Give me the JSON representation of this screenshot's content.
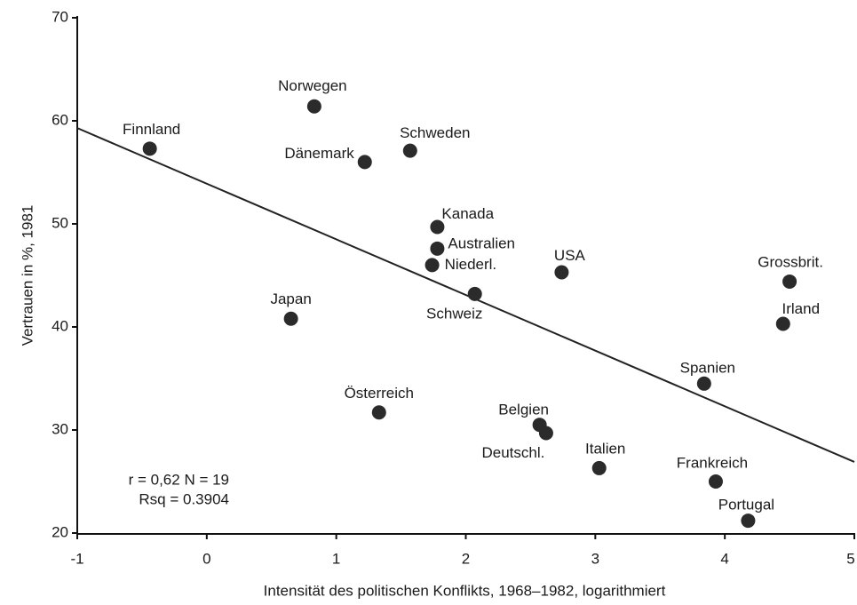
{
  "chart_data": {
    "type": "scatter",
    "x_label": "Intensität des politischen Konflikts, 1968–1982, logarithmiert",
    "y_label": "Vertrauen in %, 1981",
    "labels": [
      "Finnland",
      "Norwegen",
      "Dänemark",
      "Schweden",
      "Kanada",
      "Australien",
      "Niederl.",
      "USA",
      "Schweiz",
      "Japan",
      "Grossbrit.",
      "Irland",
      "Spanien",
      "Österreich",
      "Belgien",
      "Deutschl.",
      "Italien",
      "Frankreich",
      "Portugal"
    ],
    "x": [
      -0.44,
      0.83,
      1.22,
      1.57,
      1.78,
      1.78,
      1.74,
      2.74,
      2.07,
      0.65,
      4.5,
      4.45,
      3.84,
      1.33,
      2.57,
      2.62,
      3.03,
      3.93,
      4.18
    ],
    "values": [
      57.3,
      61.4,
      56.0,
      57.1,
      49.7,
      47.6,
      46.0,
      45.3,
      43.2,
      40.8,
      44.4,
      40.3,
      34.5,
      31.7,
      30.5,
      29.7,
      26.3,
      25.0,
      21.2
    ],
    "color": "#2b2b2b",
    "fit": {
      "x": [
        -1,
        5
      ],
      "y": [
        59.3,
        26.9
      ]
    },
    "annotations": [
      "r = 0,62  N = 19",
      "Rsq = 0.3904"
    ],
    "xlim": [
      -1,
      5
    ],
    "ylim": [
      20,
      70
    ],
    "xticks": [
      -1,
      0,
      1,
      2,
      3,
      4,
      5
    ],
    "yticks": [
      20,
      30,
      40,
      50,
      60,
      70
    ]
  }
}
